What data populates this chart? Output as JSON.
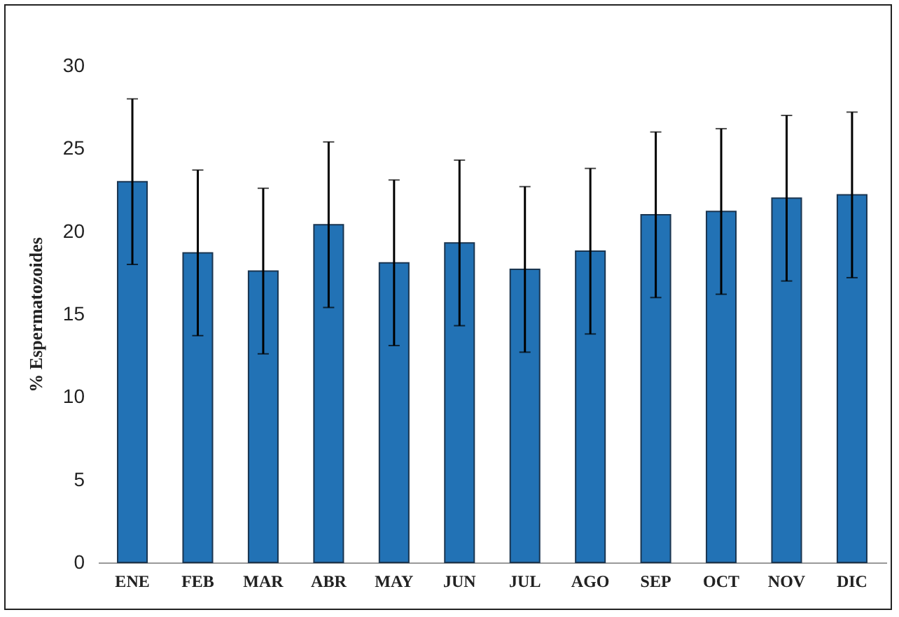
{
  "chart_data": {
    "type": "bar",
    "ylabel": "% Espermatozoides",
    "categories": [
      "ENE",
      "FEB",
      "MAR",
      "ABR",
      "MAY",
      "JUN",
      "JUL",
      "AGO",
      "SEP",
      "OCT",
      "NOV",
      "DIC"
    ],
    "values": [
      23.0,
      18.7,
      17.6,
      20.4,
      18.1,
      19.3,
      17.7,
      18.8,
      21.0,
      21.2,
      22.0,
      22.2
    ],
    "errors": [
      5,
      5,
      5,
      5,
      5,
      5,
      5,
      5,
      5,
      5,
      5,
      5
    ],
    "color": "#2272b5",
    "ylim": [
      0,
      30
    ],
    "yticks": [
      0,
      5,
      10,
      15,
      20,
      25,
      30
    ],
    "grid": false
  }
}
